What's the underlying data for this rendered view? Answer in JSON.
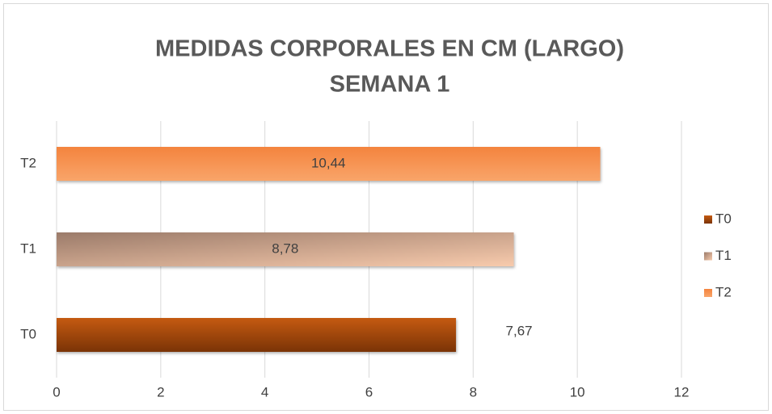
{
  "chart_data": {
    "type": "bar",
    "orientation": "horizontal",
    "title": [
      "MEDIDAS CORPORALES EN CM (LARGO)",
      "SEMANA 1"
    ],
    "categories": [
      "T0",
      "T1",
      "T2"
    ],
    "values": [
      7.67,
      8.78,
      10.44
    ],
    "value_labels": [
      "7,67",
      "8,78",
      "10,44"
    ],
    "label_position": [
      "outside_end",
      "center",
      "center"
    ],
    "colors": [
      [
        "#c55a11",
        "#7a3306"
      ],
      [
        "#9b7b6a",
        "#f8cbad"
      ],
      [
        "#f4843e",
        "#f9a56a"
      ]
    ],
    "xlim": [
      0,
      12
    ],
    "xticks": [
      0,
      2,
      4,
      6,
      8,
      10,
      12
    ],
    "grid": true,
    "legend": "right"
  }
}
